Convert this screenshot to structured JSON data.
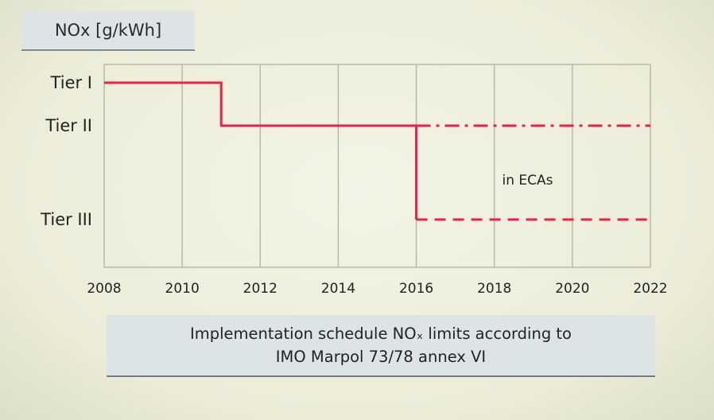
{
  "unit_label": "NOx [g/kWh]",
  "caption": {
    "line1": "Implementation schedule NOₓ limits according to",
    "line2": "IMO Marpol 73/78 annex VI"
  },
  "colors": {
    "limit_line": "#e8204e",
    "grid": "#b9b9a6",
    "caption_bg": "#dde4e6"
  },
  "chart_data": {
    "type": "line",
    "title": "",
    "xlabel": "",
    "ylabel": "NOx [g/kWh]",
    "xlim": [
      2008,
      2022
    ],
    "x_ticks": [
      2008,
      2010,
      2012,
      2014,
      2016,
      2018,
      2020,
      2022
    ],
    "y_categories": [
      "Tier I",
      "Tier II",
      "Tier III"
    ],
    "grid": true,
    "series": [
      {
        "style": "solid",
        "points": [
          {
            "x": 2008,
            "y": "Tier I"
          },
          {
            "x": 2011,
            "y": "Tier I"
          },
          {
            "x": 2011,
            "y": "Tier II"
          },
          {
            "x": 2016,
            "y": "Tier II"
          }
        ]
      },
      {
        "style": "dash-dot",
        "points": [
          {
            "x": 2016,
            "y": "Tier II"
          },
          {
            "x": 2022,
            "y": "Tier II"
          }
        ]
      },
      {
        "style": "solid",
        "points": [
          {
            "x": 2016,
            "y": "Tier II"
          },
          {
            "x": 2016,
            "y": "Tier III"
          }
        ]
      },
      {
        "style": "dashed",
        "points": [
          {
            "x": 2016,
            "y": "Tier III"
          },
          {
            "x": 2022,
            "y": "Tier III"
          }
        ]
      }
    ],
    "annotations": [
      {
        "text": "in ECAs",
        "x": 2018.2,
        "y": "between Tier II and Tier III"
      }
    ]
  }
}
